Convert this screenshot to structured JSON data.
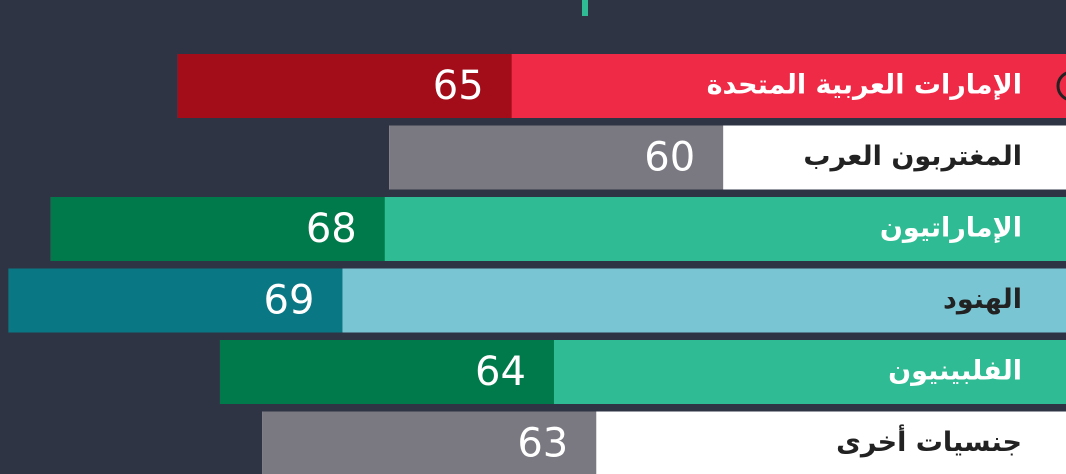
{
  "chart_data": {
    "type": "bar",
    "orientation": "horizontal",
    "direction": "rtl",
    "categories": [
      "الإمارات العربية المتحدة",
      "المغتربون العرب",
      "الإماراتيون",
      "الهنود",
      "الفلبينيون",
      "جنسيات أخرى"
    ],
    "values": [
      65,
      60,
      68,
      69,
      64,
      63
    ],
    "bar_colors": [
      "#a30d1a",
      "#7a7880",
      "#007a4a",
      "#0a7784",
      "#007a4a",
      "#7a7880"
    ],
    "label_colors": [
      "#ee2a47",
      "#ffffff",
      "#2fbb93",
      "#79c5d3",
      "#2fbb93",
      "#ffffff"
    ],
    "label_text_colors": [
      "#ffffff",
      "#222222",
      "#ffffff",
      "#222222",
      "#ffffff",
      "#222222"
    ],
    "xlim": [
      44,
      69.2
    ]
  }
}
